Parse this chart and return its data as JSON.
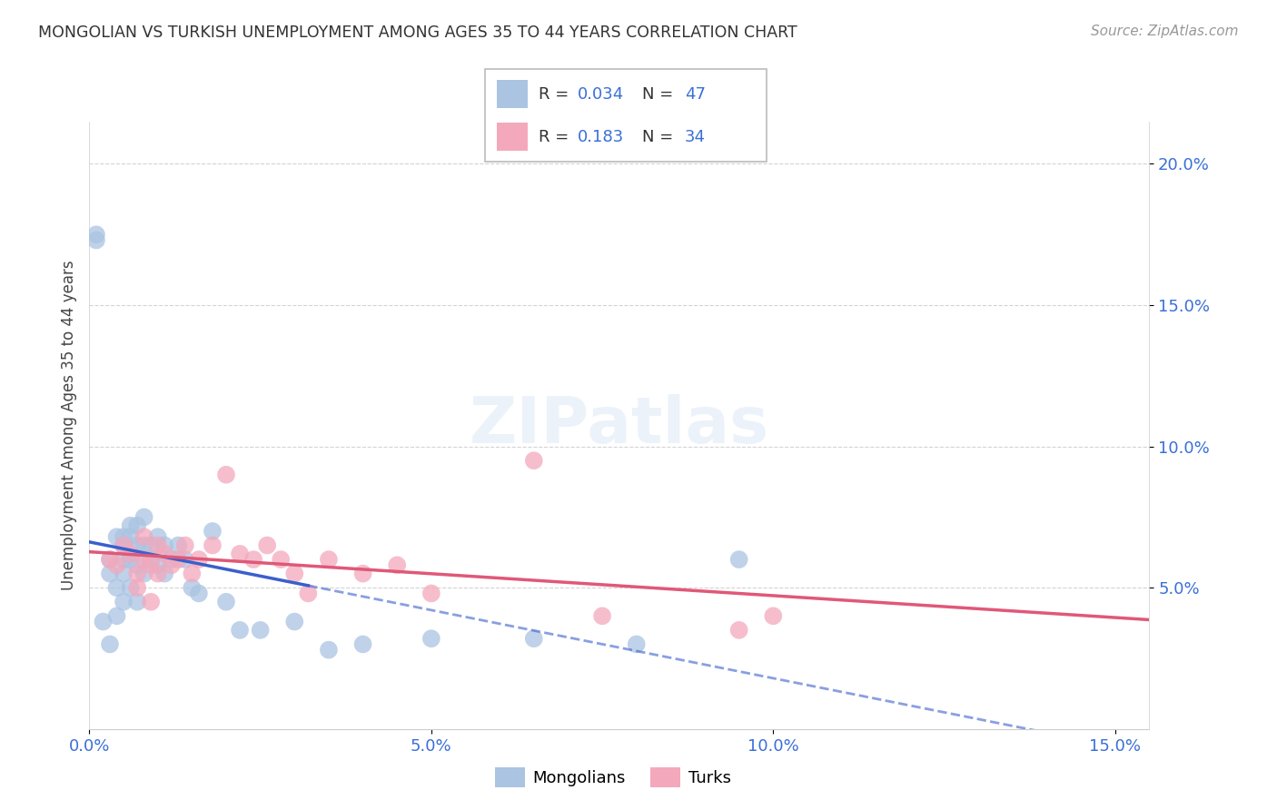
{
  "title": "MONGOLIAN VS TURKISH UNEMPLOYMENT AMONG AGES 35 TO 44 YEARS CORRELATION CHART",
  "source": "Source: ZipAtlas.com",
  "ylabel": "Unemployment Among Ages 35 to 44 years",
  "xlim": [
    0.0,
    0.155
  ],
  "ylim": [
    0.0,
    0.215
  ],
  "xticks": [
    0.0,
    0.05,
    0.1,
    0.15
  ],
  "xticklabels": [
    "0.0%",
    "5.0%",
    "10.0%",
    "15.0%"
  ],
  "yticks": [
    0.05,
    0.1,
    0.15,
    0.2
  ],
  "yticklabels": [
    "5.0%",
    "10.0%",
    "15.0%",
    "20.0%"
  ],
  "legend1_r": "0.034",
  "legend1_n": "47",
  "legend2_r": "0.183",
  "legend2_n": "34",
  "mongolian_color": "#aac4e2",
  "turkish_color": "#f4a8bc",
  "mongolian_line_color": "#3a5fcd",
  "turkish_line_color": "#e05878",
  "background": "#ffffff",
  "grid_color": "#c8c8c8",
  "mongolians_x": [
    0.001,
    0.001,
    0.002,
    0.003,
    0.003,
    0.003,
    0.004,
    0.004,
    0.004,
    0.005,
    0.005,
    0.005,
    0.005,
    0.005,
    0.006,
    0.006,
    0.006,
    0.006,
    0.007,
    0.007,
    0.007,
    0.007,
    0.008,
    0.008,
    0.008,
    0.009,
    0.009,
    0.01,
    0.01,
    0.011,
    0.011,
    0.012,
    0.013,
    0.014,
    0.015,
    0.016,
    0.018,
    0.02,
    0.022,
    0.025,
    0.03,
    0.035,
    0.04,
    0.05,
    0.065,
    0.08,
    0.095
  ],
  "mongolians_y": [
    0.175,
    0.173,
    0.038,
    0.06,
    0.055,
    0.03,
    0.068,
    0.05,
    0.04,
    0.068,
    0.065,
    0.06,
    0.055,
    0.045,
    0.072,
    0.068,
    0.06,
    0.05,
    0.072,
    0.065,
    0.058,
    0.045,
    0.075,
    0.065,
    0.055,
    0.065,
    0.06,
    0.068,
    0.058,
    0.065,
    0.055,
    0.06,
    0.065,
    0.06,
    0.05,
    0.048,
    0.07,
    0.045,
    0.035,
    0.035,
    0.038,
    0.028,
    0.03,
    0.032,
    0.032,
    0.03,
    0.06
  ],
  "turks_x": [
    0.003,
    0.004,
    0.005,
    0.006,
    0.007,
    0.007,
    0.008,
    0.008,
    0.009,
    0.009,
    0.01,
    0.01,
    0.011,
    0.012,
    0.013,
    0.014,
    0.015,
    0.016,
    0.018,
    0.02,
    0.022,
    0.024,
    0.026,
    0.028,
    0.03,
    0.032,
    0.035,
    0.04,
    0.045,
    0.05,
    0.065,
    0.075,
    0.095,
    0.1
  ],
  "turks_y": [
    0.06,
    0.058,
    0.065,
    0.062,
    0.055,
    0.05,
    0.068,
    0.06,
    0.058,
    0.045,
    0.065,
    0.055,
    0.062,
    0.058,
    0.06,
    0.065,
    0.055,
    0.06,
    0.065,
    0.09,
    0.062,
    0.06,
    0.065,
    0.06,
    0.055,
    0.048,
    0.06,
    0.055,
    0.058,
    0.048,
    0.095,
    0.04,
    0.035,
    0.04
  ],
  "solid_line_end_x": 0.032,
  "mongolian_bottom_legend": "Mongolians",
  "turkish_bottom_legend": "Turks"
}
